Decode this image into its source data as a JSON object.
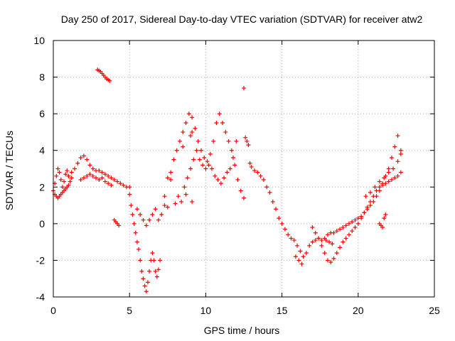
{
  "chart_data": {
    "type": "scatter",
    "title": "Day 250 of 2017, Sidereal Day-to-day VTEC variation (SDTVAR) for receiver atw2",
    "xlabel": "GPS time / hours",
    "ylabel": "SDTVAR / TECUs",
    "xlim": [
      0,
      25
    ],
    "ylim": [
      -4,
      10
    ],
    "xticks": [
      0,
      5,
      10,
      15,
      20,
      25
    ],
    "yticks": [
      -4,
      -2,
      0,
      2,
      4,
      6,
      8,
      10
    ],
    "grid": true,
    "marker": "+",
    "marker_color": "#ff0000",
    "legend": "none",
    "series": [
      {
        "name": "SDTVAR",
        "x": [
          0.0,
          0.1,
          0.2,
          0.3,
          0.4,
          0.5,
          0.6,
          0.7,
          0.8,
          0.9,
          1.0,
          0.1,
          0.2,
          0.3,
          0.4,
          0.5,
          0.6,
          0.7,
          0.8,
          0.9,
          1.0,
          1.1,
          1.2,
          1.0,
          1.2,
          1.4,
          1.6,
          1.8,
          2.0,
          2.2,
          2.4,
          2.6,
          2.8,
          3.0,
          3.2,
          3.4,
          3.6,
          3.8,
          4.0,
          4.2,
          4.4,
          4.6,
          4.8,
          5.0,
          1.8,
          2.0,
          2.2,
          2.4,
          2.6,
          2.8,
          3.0,
          3.2,
          3.4,
          3.6,
          3.8,
          2.9,
          3.0,
          3.1,
          3.2,
          3.3,
          3.4,
          3.5,
          3.6,
          3.7,
          4.0,
          4.1,
          4.2,
          4.3,
          5.0,
          5.1,
          5.2,
          5.3,
          5.4,
          5.5,
          5.6,
          5.7,
          5.8,
          5.9,
          6.0,
          6.1,
          6.2,
          6.3,
          6.4,
          6.5,
          6.6,
          6.7,
          6.8,
          6.9,
          7.0,
          5.5,
          5.7,
          5.9,
          6.1,
          6.3,
          6.5,
          6.7,
          6.9,
          7.1,
          7.3,
          7.5,
          7.7,
          7.9,
          8.1,
          8.3,
          8.5,
          8.7,
          8.9,
          9.1,
          9.3,
          9.5,
          9.7,
          9.9,
          10.1,
          10.3,
          10.5,
          10.7,
          10.9,
          11.1,
          11.3,
          11.5,
          11.7,
          11.9,
          12.1,
          12.3,
          12.5,
          8.0,
          8.2,
          8.4,
          8.6,
          8.8,
          9.0,
          9.2,
          9.4,
          9.6,
          9.8,
          10.0,
          10.2,
          10.4,
          10.6,
          10.8,
          11.0,
          11.2,
          11.4,
          11.6,
          11.8,
          12.0,
          9.0,
          9.1,
          8.5,
          8.7,
          9.1,
          7.3,
          7.5,
          7.7,
          12.5,
          12.6,
          12.7,
          12.8,
          12.9,
          13.0,
          13.2,
          13.4,
          13.6,
          13.8,
          14.0,
          14.2,
          14.4,
          14.6,
          14.8,
          15.0,
          15.2,
          15.4,
          15.6,
          15.8,
          16.0,
          16.2,
          16.4,
          16.6,
          16.8,
          17.0,
          17.2,
          17.4,
          17.6,
          17.8,
          18.0,
          18.2,
          18.4,
          18.6,
          18.8,
          19.0,
          19.2,
          19.4,
          19.6,
          19.8,
          20.0,
          20.2,
          20.4,
          20.6,
          20.8,
          21.0,
          21.2,
          21.4,
          21.6,
          21.8,
          22.0,
          22.2,
          22.4,
          22.6,
          22.8,
          17.0,
          17.2,
          17.4,
          17.6,
          17.8,
          18.0,
          18.2,
          18.4,
          18.6,
          18.8,
          19.0,
          19.2,
          19.4,
          19.6,
          19.8,
          20.0,
          20.2,
          20.4,
          20.6,
          20.8,
          21.0,
          21.2,
          21.4,
          21.6,
          21.8,
          22.0,
          22.2,
          22.4,
          22.6,
          22.8,
          20.5,
          20.8,
          21.1,
          21.4,
          21.7,
          22.0,
          22.3,
          22.6,
          22.8,
          15.9,
          16.1,
          16.3,
          17.9,
          18.1,
          18.3,
          21.4,
          21.5,
          21.6,
          21.7,
          21.8
        ],
        "y": [
          1.8,
          2.2,
          2.6,
          3.0,
          2.8,
          2.4,
          2.0,
          2.3,
          2.7,
          2.9,
          2.6,
          1.6,
          1.5,
          1.4,
          1.5,
          1.6,
          1.7,
          1.8,
          1.9,
          2.0,
          2.1,
          2.3,
          2.5,
          2.6,
          2.8,
          3.0,
          3.3,
          3.6,
          3.7,
          3.5,
          3.2,
          3.0,
          2.9,
          2.9,
          2.8,
          2.7,
          2.6,
          2.5,
          2.4,
          2.3,
          2.2,
          2.1,
          2.0,
          2.0,
          2.4,
          2.5,
          2.6,
          2.7,
          2.6,
          2.5,
          2.4,
          2.5,
          2.3,
          2.2,
          2.1,
          8.4,
          8.35,
          8.3,
          8.2,
          8.1,
          8.0,
          7.9,
          7.85,
          7.8,
          0.2,
          0.1,
          0.0,
          -0.1,
          1.6,
          1.0,
          0.5,
          0.0,
          -0.5,
          -1.0,
          -1.4,
          -2.0,
          -2.6,
          -3.0,
          -3.4,
          -3.7,
          -3.2,
          -2.6,
          -2.0,
          -1.6,
          -2.0,
          -2.6,
          -2.9,
          -2.5,
          -2.0,
          0.8,
          0.5,
          0.2,
          -0.1,
          0.2,
          0.5,
          0.8,
          0.2,
          0.5,
          1.5,
          2.5,
          2.8,
          3.5,
          4.0,
          4.5,
          5.0,
          5.5,
          6.0,
          5.8,
          5.2,
          4.5,
          4.0,
          3.6,
          3.4,
          3.8,
          4.5,
          5.5,
          6.0,
          5.5,
          5.0,
          4.5,
          4.0,
          3.2,
          2.4,
          1.8,
          1.4,
          1.1,
          1.5,
          1.2,
          2.0,
          2.5,
          3.0,
          3.5,
          4.0,
          3.5,
          3.2,
          3.0,
          3.2,
          3.0,
          2.6,
          2.4,
          2.2,
          2.5,
          2.8,
          3.0,
          3.6,
          4.5,
          4.8,
          5.0,
          4.2,
          1.6,
          1.2,
          1.0,
          0.9,
          2.4,
          7.4,
          4.7,
          4.5,
          4.3,
          3.3,
          3.1,
          2.9,
          2.8,
          2.6,
          2.4,
          2.0,
          1.7,
          1.2,
          0.8,
          0.3,
          0.0,
          -0.3,
          -0.6,
          -0.8,
          -0.9,
          -1.2,
          -1.5,
          -1.8,
          -1.6,
          -1.2,
          -1.0,
          -0.9,
          -0.8,
          -0.9,
          -0.8,
          -0.6,
          -0.5,
          -0.5,
          -0.4,
          -0.3,
          -0.2,
          -0.1,
          0.0,
          0.1,
          0.2,
          0.3,
          0.4,
          0.6,
          0.8,
          1.0,
          1.2,
          1.5,
          1.8,
          2.2,
          2.6,
          3.0,
          3.6,
          4.2,
          4.8,
          4.0,
          -0.2,
          -0.5,
          -0.8,
          -1.2,
          -1.6,
          -2.0,
          -2.1,
          -1.9,
          -1.6,
          -1.3,
          -1.0,
          -0.8,
          -0.6,
          -0.4,
          -0.2,
          0.0,
          0.3,
          0.6,
          0.9,
          1.2,
          1.5,
          1.8,
          2.0,
          2.1,
          2.2,
          2.3,
          2.4,
          2.5,
          2.6,
          2.8,
          1.5,
          1.7,
          2.0,
          2.3,
          2.5,
          2.8,
          3.0,
          3.4,
          3.8,
          -1.8,
          -2.0,
          -2.2,
          -0.9,
          -1.0,
          -1.1,
          0.0,
          -0.1,
          -0.2,
          0.3,
          0.5
        ]
      }
    ]
  }
}
